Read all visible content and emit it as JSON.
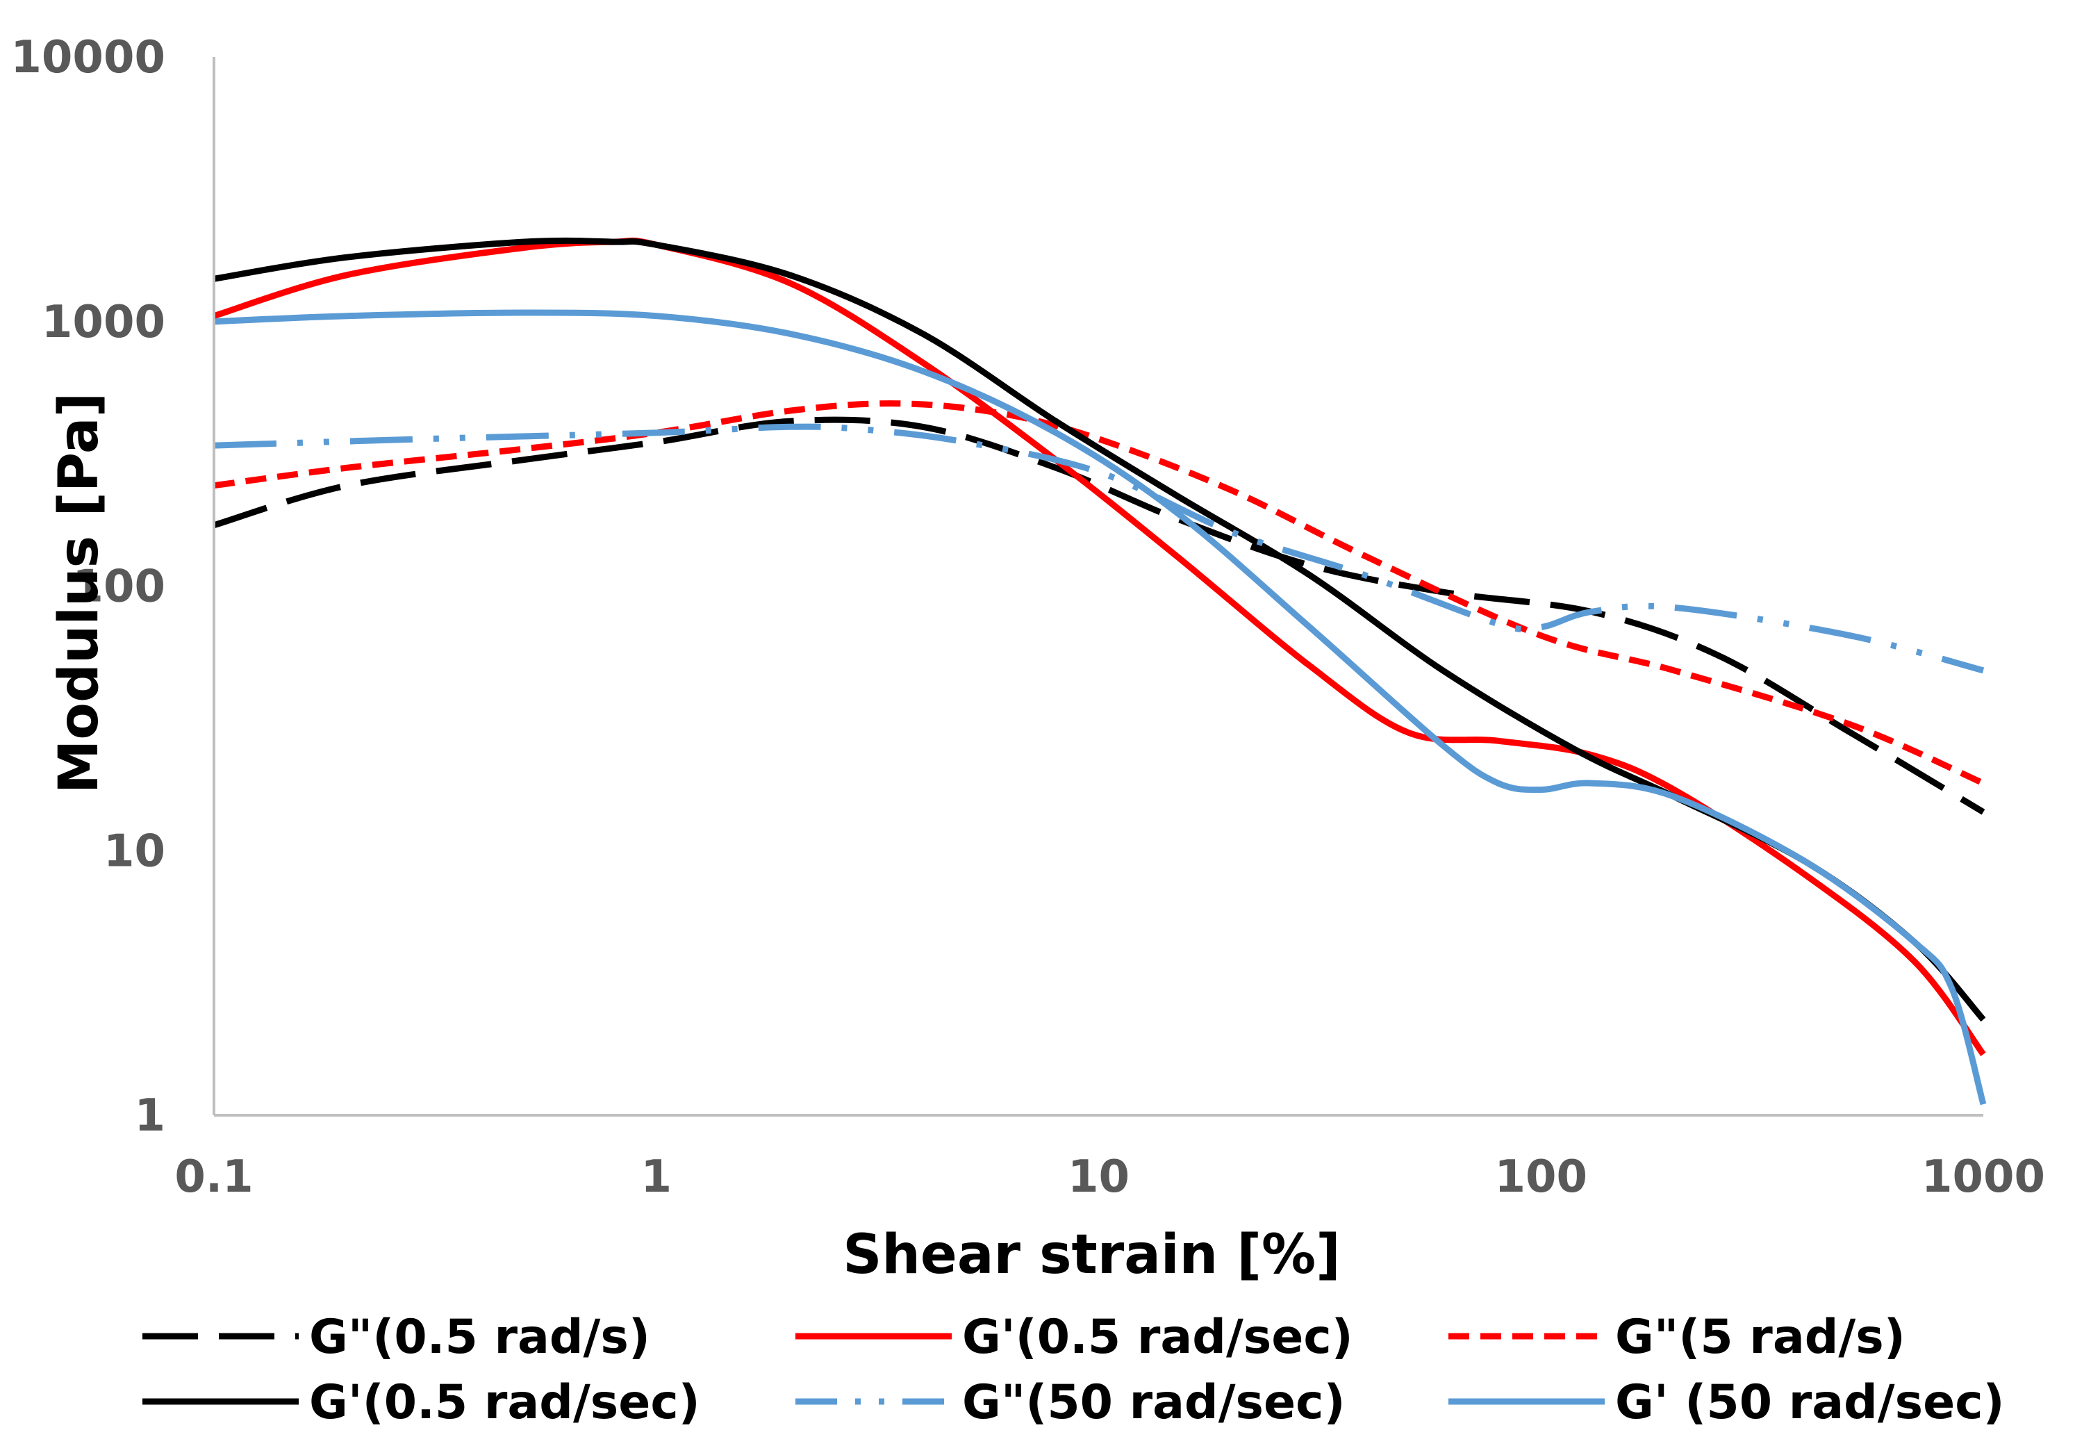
{
  "chart_data": {
    "type": "line",
    "title": "",
    "xlabel": "Shear strain [%]",
    "ylabel": "Modulus [Pa]",
    "xscale": "log",
    "yscale": "log",
    "xlim": [
      0.1,
      1000
    ],
    "ylim": [
      1,
      10000
    ],
    "xticks": [
      "0.1",
      "1",
      "10",
      "100",
      "1000"
    ],
    "yticks": [
      "1",
      "10",
      "100",
      "1000",
      "10000"
    ],
    "grid": false,
    "legend_position": "bottom",
    "series": [
      {
        "name": "G\"(0.5 rad/s)",
        "color": "#000000",
        "style": "long-dash",
        "x": [
          0.1,
          0.2,
          0.5,
          1,
          2,
          4,
          8,
          15,
          30,
          60,
          130,
          250,
          500,
          1000
        ],
        "y": [
          170,
          240,
          300,
          350,
          420,
          400,
          280,
          180,
          120,
          95,
          80,
          55,
          28,
          14
        ]
      },
      {
        "name": "G'(0.5 rad/sec)",
        "color": "#FF0000",
        "style": "solid",
        "x": [
          0.1,
          0.2,
          0.5,
          0.8,
          1,
          2,
          4,
          8,
          15,
          30,
          50,
          80,
          130,
          200,
          400,
          700,
          1000
        ],
        "y": [
          1050,
          1500,
          1900,
          2000,
          1950,
          1400,
          700,
          300,
          130,
          50,
          28,
          26,
          23,
          17,
          8,
          3.8,
          1.7
        ]
      },
      {
        "name": "G\"(5 rad/s)",
        "color": "#FF0000",
        "style": "short-dash",
        "x": [
          0.1,
          0.2,
          0.5,
          1,
          2,
          3.5,
          6,
          10,
          20,
          40,
          100,
          200,
          500,
          1000
        ],
        "y": [
          240,
          280,
          330,
          380,
          460,
          490,
          450,
          360,
          230,
          130,
          65,
          48,
          30,
          18
        ]
      },
      {
        "name": "G'(0.5 rad/sec)",
        "color": "#000000",
        "style": "solid",
        "x": [
          0.1,
          0.2,
          0.5,
          0.8,
          1,
          2,
          4,
          8,
          15,
          30,
          60,
          120,
          200,
          400,
          700,
          1000
        ],
        "y": [
          1450,
          1750,
          2000,
          2000,
          1950,
          1500,
          900,
          420,
          220,
          110,
          48,
          24,
          16,
          9,
          4.5,
          2.3
        ]
      },
      {
        "name": "G\"(50 rad/sec)",
        "color": "#5B9BD5",
        "style": "dash-dot-dot",
        "x": [
          0.1,
          0.3,
          1,
          2,
          3,
          5,
          10,
          20,
          40,
          80,
          100,
          130,
          200,
          500,
          1000
        ],
        "y": [
          340,
          360,
          380,
          400,
          390,
          350,
          270,
          160,
          110,
          72,
          70,
          80,
          83,
          65,
          48
        ]
      },
      {
        "name": "G' (50 rad/sec)",
        "color": "#5B9BD5",
        "style": "solid",
        "x": [
          0.1,
          0.2,
          0.5,
          1,
          2,
          4,
          8,
          15,
          30,
          60,
          80,
          100,
          130,
          200,
          400,
          700,
          850,
          1000
        ],
        "y": [
          1000,
          1050,
          1080,
          1050,
          900,
          650,
          380,
          190,
          70,
          25,
          18,
          17,
          18,
          16,
          9,
          4.5,
          3,
          1.1
        ]
      }
    ]
  }
}
